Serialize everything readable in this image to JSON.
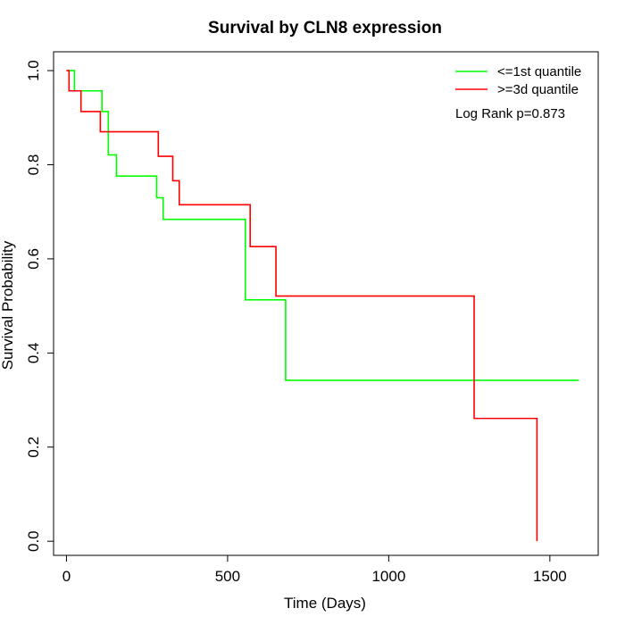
{
  "chart_data": {
    "type": "line",
    "title": "Survival by CLN8 expression",
    "xlabel": "Time (Days)",
    "ylabel": "Survival Probability",
    "xlim": [
      -40,
      1650
    ],
    "ylim": [
      -0.03,
      1.04
    ],
    "x_ticks": [
      0,
      500,
      1000,
      1500
    ],
    "y_ticks": [
      0.0,
      0.2,
      0.4,
      0.6,
      0.8,
      1.0
    ],
    "x_tick_labels": [
      "0",
      "500",
      "1000",
      "1500"
    ],
    "y_tick_labels": [
      "0.0",
      "0.2",
      "0.4",
      "0.6",
      "0.8",
      "1.0"
    ],
    "grid": false,
    "legend_position": "top-right",
    "annotation": "Log Rank p=0.873",
    "series": [
      {
        "name": "<=1st quantile",
        "color": "#00ff00",
        "step": true,
        "points": [
          [
            0,
            1.0
          ],
          [
            25,
            0.957
          ],
          [
            110,
            0.913
          ],
          [
            130,
            0.821
          ],
          [
            155,
            0.776
          ],
          [
            280,
            0.73
          ],
          [
            300,
            0.684
          ],
          [
            555,
            0.513
          ],
          [
            680,
            0.342
          ],
          [
            1590,
            0.342
          ]
        ]
      },
      {
        "name": ">=3d quantile",
        "color": "#ff0000",
        "step": true,
        "points": [
          [
            0,
            1.0
          ],
          [
            8,
            0.957
          ],
          [
            45,
            0.913
          ],
          [
            105,
            0.87
          ],
          [
            285,
            0.818
          ],
          [
            330,
            0.766
          ],
          [
            350,
            0.715
          ],
          [
            570,
            0.626
          ],
          [
            650,
            0.521
          ],
          [
            1265,
            0.261
          ],
          [
            1460,
            0.261
          ],
          [
            1460,
            0.0
          ]
        ]
      }
    ]
  }
}
